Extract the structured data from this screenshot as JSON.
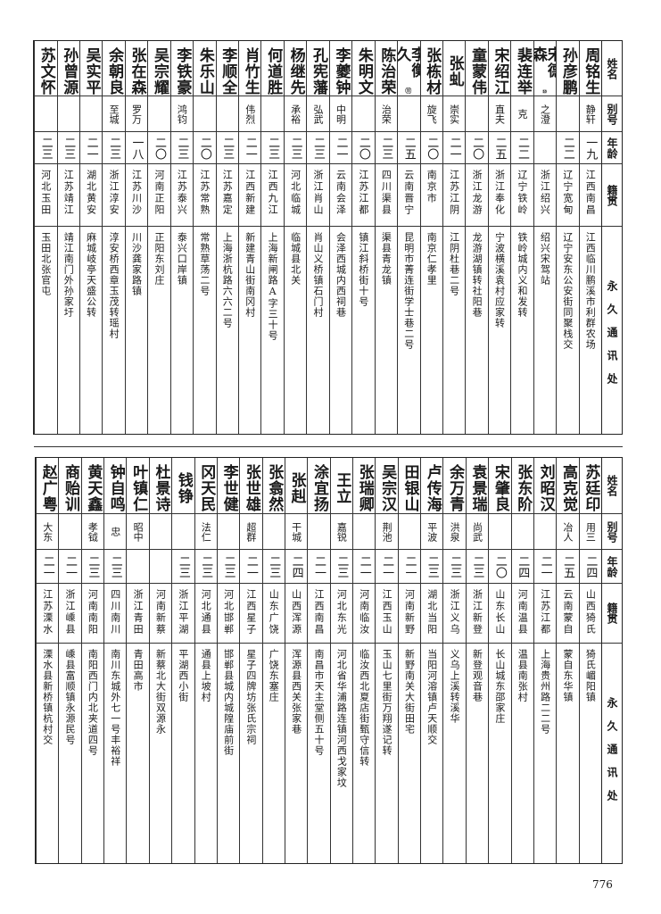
{
  "page_number": "776",
  "tables": [
    {
      "header": {
        "name": "姓名",
        "alias": "别号",
        "age": "年龄",
        "origin": "籍贯",
        "address": "永久通讯处"
      },
      "rows": [
        {
          "name": "周铭生",
          "alias": "静轩",
          "age": "一九",
          "origin": "江西南昌",
          "address": "江西临川鹏溪市利群农场"
        },
        {
          "name": "孙彦鹏",
          "alias": "",
          "age": "二二",
          "origin": "辽宁宽甸",
          "address": "辽宁安东公安街同聚栈交"
        },
        {
          "name": "宋德森",
          "note": "⑩",
          "alias": "之澄",
          "age": "",
          "origin": "浙江绍兴",
          "address": "绍兴宋驾站"
        },
        {
          "name": "裴连举",
          "alias": "克",
          "age": "二二",
          "origin": "辽宁铁岭",
          "address": "铁岭城内义和发转"
        },
        {
          "name": "宋绍江",
          "alias": "直夫",
          "age": "二五",
          "origin": "浙江奉化",
          "address": "宁波横溪袁村应家转"
        },
        {
          "name": "童蒙伟",
          "alias": "",
          "age": "二〇",
          "origin": "浙江龙游",
          "address": "龙游湖镇转社阳巷"
        },
        {
          "name": "张虬",
          "alias": "崇实",
          "age": "二一",
          "origin": "江苏江阴",
          "address": "江阴杜巷二号"
        },
        {
          "name": "张栋材",
          "alias": "旋飞",
          "age": "二〇",
          "origin": "南京市",
          "address": "南京仁孝里"
        },
        {
          "name": "李衡久",
          "note": "⑪",
          "alias": "",
          "age": "二五",
          "origin": "云南晋宁",
          "address": "昆明市菁连街学士巷二号"
        },
        {
          "name": "陈治荣",
          "alias": "治荣",
          "age": "二三",
          "origin": "四川渠县",
          "address": "渠县青龙镇"
        },
        {
          "name": "朱明文",
          "alias": "",
          "age": "二〇",
          "origin": "江苏江都",
          "address": "镇江斜桥街十号"
        },
        {
          "name": "李夔钟",
          "alias": "中明",
          "age": "二一",
          "origin": "云南会泽",
          "address": "会泽西城内西祠巷"
        },
        {
          "name": "孔宪藩",
          "alias": "弘武",
          "age": "二三",
          "origin": "浙江肖山",
          "address": "肖山义桥镇石门村"
        },
        {
          "name": "杨继先",
          "alias": "承裕",
          "age": "二三",
          "origin": "河北临城",
          "address": "临城县北关"
        },
        {
          "name": "何道胜",
          "alias": "",
          "age": "二三",
          "origin": "江西九江",
          "address": "上海新闸路A字三十号"
        },
        {
          "name": "肖竹生",
          "alias": "伟烈",
          "age": "二一",
          "origin": "江西新建",
          "address": "新建青山街南冈村"
        },
        {
          "name": "李顺全",
          "alias": "",
          "age": "二三",
          "origin": "江苏嘉定",
          "address": "上海浙杭路六六二号"
        },
        {
          "name": "朱乐山",
          "alias": "",
          "age": "二〇",
          "origin": "江苏常熟",
          "address": "常熟草荡二号"
        },
        {
          "name": "李铁豪",
          "alias": "鸿钧",
          "age": "二三",
          "origin": "江苏泰兴",
          "address": "泰兴口岸镇"
        },
        {
          "name": "吴宗耀",
          "alias": "",
          "age": "二〇",
          "origin": "河南正阳",
          "address": "正阳东刘庄"
        },
        {
          "name": "张在森",
          "alias": "罗万",
          "age": "一八",
          "origin": "江苏川沙",
          "address": "川沙龚家路镇"
        },
        {
          "name": "余朝良",
          "alias": "至城",
          "age": "二三",
          "origin": "浙江淳安",
          "address": "淳安桥西章玉茂转瑶村"
        },
        {
          "name": "吴实平",
          "alias": "",
          "age": "二一",
          "origin": "湖北黄安",
          "address": "麻城岐亭天盛公转"
        },
        {
          "name": "孙曾源",
          "alias": "",
          "age": "二三",
          "origin": "江苏靖江",
          "address": "靖江南门外孙家圩"
        },
        {
          "name": "苏文怀",
          "alias": "",
          "age": "二三",
          "origin": "河北玉田",
          "address": "玉田北张官屯"
        }
      ]
    },
    {
      "header": {
        "name": "姓名",
        "alias": "别号",
        "age": "年龄",
        "origin": "籍贯",
        "address": "永久通讯处"
      },
      "rows": [
        {
          "name": "苏廷印",
          "alias": "用三",
          "age": "二四",
          "origin": "山西猗氏",
          "address": "猗氏嵋阳镇"
        },
        {
          "name": "高克觉",
          "alias": "冶人",
          "age": "二五",
          "origin": "云南蒙自",
          "address": "蒙自东华镇"
        },
        {
          "name": "刘昭汉",
          "alias": "",
          "age": "二一",
          "origin": "江苏江都",
          "address": "上海贵州路二二号"
        },
        {
          "name": "张东阶",
          "alias": "",
          "age": "二四",
          "origin": "河南温县",
          "address": "温县南张村"
        },
        {
          "name": "宋肇良",
          "alias": "",
          "age": "二〇",
          "origin": "山东长山",
          "address": "长山城东邵家庄"
        },
        {
          "name": "袁景瑞",
          "alias": "尚武",
          "age": "二三",
          "origin": "浙江新登",
          "address": "新登观音巷"
        },
        {
          "name": "余万青",
          "alias": "洪泉",
          "age": "二三",
          "origin": "浙江义乌",
          "address": "义乌上溪转溪华"
        },
        {
          "name": "卢传海",
          "alias": "平波",
          "age": "二三",
          "origin": "湖北当阳",
          "address": "当阳河溶镇卢天顺交"
        },
        {
          "name": "田银山",
          "alias": "",
          "age": "二一",
          "origin": "河南新野",
          "address": "新野南关大街田宅"
        },
        {
          "name": "吴宗汉",
          "alias": "荆池",
          "age": "二一",
          "origin": "江西玉山",
          "address": "玉山七里街万翔遂记转"
        },
        {
          "name": "张瑞卿",
          "alias": "",
          "age": "二一",
          "origin": "河南临汝",
          "address": "临汝西北夏店街甄守信转"
        },
        {
          "name": "王立",
          "alias": "嘉锐",
          "age": "二三",
          "origin": "河北东光",
          "address": "河北省华浦路连镇河西戈家坟"
        },
        {
          "name": "涂宜扬",
          "alias": "",
          "age": "二一",
          "origin": "江西南昌",
          "address": "南昌市天主堂侧五十号"
        },
        {
          "name": "张赳",
          "alias": "干城",
          "age": "二四",
          "origin": "山西浑源",
          "address": "浑源县西关张家巷"
        },
        {
          "name": "张翕然",
          "alias": "",
          "age": "二三",
          "origin": "山东广饶",
          "address": "广饶东塞庄"
        },
        {
          "name": "张世雄",
          "alias": "超群",
          "age": "二一",
          "origin": "江西星子",
          "address": "星子四牌坊张氏宗祠"
        },
        {
          "name": "李世健",
          "alias": "",
          "age": "二三",
          "origin": "河北邯郸",
          "address": "邯郸县城内城隍庙前街"
        },
        {
          "name": "冈天民",
          "alias": "法仁",
          "age": "二三",
          "origin": "河北通县",
          "address": "通县上坡村"
        },
        {
          "name": "钱铮",
          "alias": "",
          "age": "二三",
          "origin": "浙江平湖",
          "address": "平湖西小街"
        },
        {
          "name": "杜景诗",
          "alias": "",
          "age": "",
          "origin": "河南新蔡",
          "address": "新蔡北大街双源永"
        },
        {
          "name": "叶镇仁",
          "alias": "昭中",
          "age": "",
          "origin": "浙江青田",
          "address": "青田高市"
        },
        {
          "name": "钟自鸣",
          "alias": "忠",
          "age": "二三",
          "origin": "四川南川",
          "address": "南川东城外七一号丰裕祥"
        },
        {
          "name": "黄天鑫",
          "alias": "孝钺",
          "age": "二三",
          "origin": "河南南阳",
          "address": "南阳西门内北夹道四号"
        },
        {
          "name": "商贻训",
          "alias": "",
          "age": "二一",
          "origin": "浙江嵊县",
          "address": "嵊县富顺镇永源民号"
        },
        {
          "name": "赵广粤",
          "alias": "大东",
          "age": "二一",
          "origin": "江苏溧水",
          "address": "溧水县新桥镇杭村交"
        }
      ]
    }
  ]
}
